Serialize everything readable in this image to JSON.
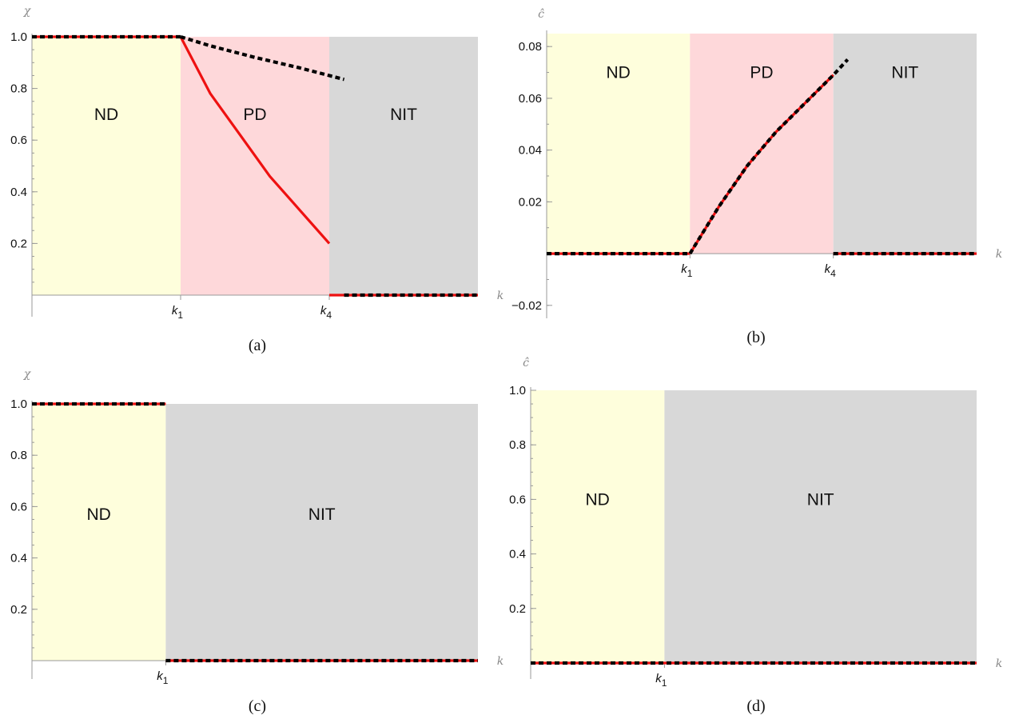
{
  "colors": {
    "ND": "#fefedc",
    "PD": "#fed8da",
    "NIT": "#d8d8d8",
    "red_line": "#ee1111",
    "dashed_line": "#000000",
    "axis": "#999999"
  },
  "chart_data": [
    {
      "id": "a",
      "type": "line",
      "caption": "(a)",
      "xlabel": "k",
      "ylabel": "χ",
      "xlim": [
        0,
        3
      ],
      "ylim": [
        0,
        1.0
      ],
      "yticks": [
        0.2,
        0.4,
        0.6,
        0.8,
        1.0
      ],
      "ytick_labels": [
        "0.2",
        "0.4",
        "0.6",
        "0.8",
        "1.0"
      ],
      "xmarks": [
        {
          "x": 1.0,
          "label": "k",
          "sub": "1"
        },
        {
          "x": 2.0,
          "label": "k",
          "sub": "4"
        }
      ],
      "regions": [
        {
          "name": "ND",
          "x0": 0,
          "x1": 1.0,
          "ymax": 1.0,
          "label": "ND",
          "label_y": 0.7
        },
        {
          "name": "PD",
          "x0": 1.0,
          "x1": 2.0,
          "ymax": 1.0,
          "label": "PD",
          "label_y": 0.7
        },
        {
          "name": "NIT",
          "x0": 2.0,
          "x1": 3.0,
          "ymax": 1.0,
          "label": "NIT",
          "label_y": 0.7
        }
      ],
      "series": [
        {
          "style": "red",
          "points": [
            [
              0,
              1.0
            ],
            [
              1.0,
              1.0
            ]
          ]
        },
        {
          "style": "red",
          "points": [
            [
              1.0,
              1.0
            ],
            [
              1.2,
              0.78
            ],
            [
              1.4,
              0.62
            ],
            [
              1.6,
              0.46
            ],
            [
              1.8,
              0.33
            ],
            [
              2.0,
              0.2
            ]
          ]
        },
        {
          "style": "red",
          "points": [
            [
              2.0,
              0.0
            ],
            [
              3.0,
              0.0
            ]
          ]
        },
        {
          "style": "dashed",
          "points": [
            [
              0,
              1.0
            ],
            [
              1.0,
              1.0
            ]
          ]
        },
        {
          "style": "dashed",
          "points": [
            [
              1.0,
              1.0
            ],
            [
              1.2,
              0.965
            ],
            [
              1.5,
              0.92
            ],
            [
              1.8,
              0.88
            ],
            [
              2.1,
              0.835
            ]
          ]
        },
        {
          "style": "dashed",
          "points": [
            [
              2.1,
              0.0
            ],
            [
              3.0,
              0.0
            ]
          ]
        }
      ]
    },
    {
      "id": "b",
      "type": "line",
      "caption": "(b)",
      "xlabel": "k",
      "ylabel": "ĉ",
      "xlim": [
        0,
        3
      ],
      "ylim": [
        -0.025,
        0.085
      ],
      "yticks": [
        -0.02,
        0.02,
        0.04,
        0.06,
        0.08
      ],
      "ytick_labels": [
        "−0.02",
        "0.02",
        "0.04",
        "0.06",
        "0.08"
      ],
      "xmarks": [
        {
          "x": 1.0,
          "label": "k",
          "sub": "1"
        },
        {
          "x": 2.0,
          "label": "k",
          "sub": "4"
        }
      ],
      "regions": [
        {
          "name": "ND",
          "x0": 0,
          "x1": 1.0,
          "ymax": 0.085,
          "label": "ND",
          "label_y": 0.07
        },
        {
          "name": "PD",
          "x0": 1.0,
          "x1": 2.0,
          "ymax": 0.085,
          "label": "PD",
          "label_y": 0.07
        },
        {
          "name": "NIT",
          "x0": 2.0,
          "x1": 3.0,
          "ymax": 0.085,
          "label": "NIT",
          "label_y": 0.07
        }
      ],
      "series": [
        {
          "style": "red",
          "points": [
            [
              0,
              0.0
            ],
            [
              1.0,
              0.0
            ]
          ]
        },
        {
          "style": "red",
          "points": [
            [
              1.0,
              0.0
            ],
            [
              1.2,
              0.018
            ],
            [
              1.4,
              0.034
            ],
            [
              1.6,
              0.047
            ],
            [
              1.8,
              0.058
            ],
            [
              2.0,
              0.069
            ]
          ]
        },
        {
          "style": "red",
          "points": [
            [
              2.0,
              0.0
            ],
            [
              3.0,
              0.0
            ]
          ]
        },
        {
          "style": "dashed",
          "points": [
            [
              0,
              0.0
            ],
            [
              1.0,
              0.0
            ]
          ]
        },
        {
          "style": "dashed",
          "points": [
            [
              1.0,
              0.0
            ],
            [
              1.2,
              0.018
            ],
            [
              1.4,
              0.034
            ],
            [
              1.6,
              0.047
            ],
            [
              1.8,
              0.058
            ],
            [
              2.0,
              0.069
            ],
            [
              2.1,
              0.075
            ]
          ]
        },
        {
          "style": "dashed",
          "points": [
            [
              2.0,
              0.0
            ],
            [
              3.0,
              0.0
            ]
          ]
        }
      ]
    },
    {
      "id": "c",
      "type": "line",
      "caption": "(c)",
      "xlabel": "k",
      "ylabel": "χ",
      "xlim": [
        0,
        3
      ],
      "ylim": [
        0,
        1.0
      ],
      "yticks": [
        0.2,
        0.4,
        0.6,
        0.8,
        1.0
      ],
      "ytick_labels": [
        "0.2",
        "0.4",
        "0.6",
        "0.8",
        "1.0"
      ],
      "xmarks": [
        {
          "x": 0.9,
          "label": "k",
          "sub": "1"
        }
      ],
      "regions": [
        {
          "name": "ND",
          "x0": 0,
          "x1": 0.9,
          "ymax": 1.0,
          "label": "ND",
          "label_y": 0.57
        },
        {
          "name": "NIT",
          "x0": 0.9,
          "x1": 3.0,
          "ymax": 1.0,
          "label": "NIT",
          "label_y": 0.57
        }
      ],
      "series": [
        {
          "style": "red",
          "points": [
            [
              0,
              1.0
            ],
            [
              0.9,
              1.0
            ]
          ]
        },
        {
          "style": "red",
          "points": [
            [
              0.9,
              0.0
            ],
            [
              3.0,
              0.0
            ]
          ]
        },
        {
          "style": "dashed",
          "points": [
            [
              0,
              1.0
            ],
            [
              0.9,
              1.0
            ]
          ]
        },
        {
          "style": "dashed",
          "points": [
            [
              0.9,
              0.0
            ],
            [
              3.0,
              0.0
            ]
          ]
        }
      ]
    },
    {
      "id": "d",
      "type": "line",
      "caption": "(d)",
      "xlabel": "k",
      "ylabel": "ĉ",
      "xlim": [
        0,
        3
      ],
      "ylim": [
        0,
        1.0
      ],
      "yticks": [
        0.2,
        0.4,
        0.6,
        0.8,
        1.0
      ],
      "ytick_labels": [
        "0.2",
        "0.4",
        "0.6",
        "0.8",
        "1.0"
      ],
      "xmarks": [
        {
          "x": 0.9,
          "label": "k",
          "sub": "1"
        }
      ],
      "regions": [
        {
          "name": "ND",
          "x0": 0,
          "x1": 0.9,
          "ymax": 1.0,
          "label": "ND",
          "label_y": 0.6
        },
        {
          "name": "NIT",
          "x0": 0.9,
          "x1": 3.0,
          "ymax": 1.0,
          "label": "NIT",
          "label_y": 0.6
        }
      ],
      "series": [
        {
          "style": "red",
          "points": [
            [
              0,
              0.0
            ],
            [
              3.0,
              0.0
            ]
          ]
        },
        {
          "style": "dashed",
          "points": [
            [
              0,
              0.0
            ],
            [
              3.0,
              0.0
            ]
          ]
        }
      ]
    }
  ]
}
